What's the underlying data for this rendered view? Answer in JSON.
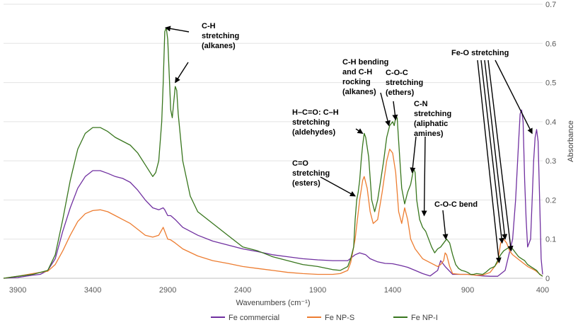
{
  "chart_data": {
    "type": "line",
    "xlabel": "Wavenumbers (cm⁻¹)",
    "ylabel": "Absorbance",
    "xlim": [
      3995,
      400
    ],
    "x_reversed": true,
    "ylim": [
      0,
      0.7
    ],
    "x_ticks": [
      3900,
      3400,
      2900,
      2400,
      1900,
      1400,
      900,
      400
    ],
    "x_tick_labels": [
      "3900",
      "3400",
      "2900",
      "2400",
      "1900",
      "1400",
      "900",
      "400"
    ],
    "y_ticks": [
      0,
      0.1,
      0.2,
      0.3,
      0.4,
      0.5,
      0.6,
      0.7
    ],
    "y_tick_labels": [
      "0",
      "0.1",
      "0.2",
      "0.3",
      "0.4",
      "0.5",
      "0.6",
      "0.7"
    ],
    "y_axis_side": "right",
    "grid": "horizontal",
    "legend_position": "bottom",
    "series": [
      {
        "name": "Fe commercial",
        "color": "#7030A0",
        "points": [
          [
            3995,
            0
          ],
          [
            3900,
            0.002
          ],
          [
            3800,
            0.008
          ],
          [
            3750,
            0.01
          ],
          [
            3700,
            0.02
          ],
          [
            3650,
            0.05
          ],
          [
            3600,
            0.12
          ],
          [
            3550,
            0.18
          ],
          [
            3500,
            0.23
          ],
          [
            3450,
            0.26
          ],
          [
            3400,
            0.275
          ],
          [
            3350,
            0.275
          ],
          [
            3300,
            0.268
          ],
          [
            3250,
            0.26
          ],
          [
            3200,
            0.255
          ],
          [
            3150,
            0.245
          ],
          [
            3100,
            0.225
          ],
          [
            3050,
            0.2
          ],
          [
            3000,
            0.18
          ],
          [
            2960,
            0.175
          ],
          [
            2930,
            0.18
          ],
          [
            2920,
            0.175
          ],
          [
            2900,
            0.16
          ],
          [
            2880,
            0.16
          ],
          [
            2850,
            0.15
          ],
          [
            2800,
            0.13
          ],
          [
            2700,
            0.11
          ],
          [
            2600,
            0.095
          ],
          [
            2500,
            0.085
          ],
          [
            2400,
            0.075
          ],
          [
            2300,
            0.068
          ],
          [
            2200,
            0.06
          ],
          [
            2100,
            0.055
          ],
          [
            2000,
            0.05
          ],
          [
            1900,
            0.047
          ],
          [
            1800,
            0.045
          ],
          [
            1700,
            0.045
          ],
          [
            1650,
            0.06
          ],
          [
            1620,
            0.065
          ],
          [
            1580,
            0.06
          ],
          [
            1550,
            0.05
          ],
          [
            1500,
            0.042
          ],
          [
            1450,
            0.038
          ],
          [
            1400,
            0.037
          ],
          [
            1350,
            0.033
          ],
          [
            1300,
            0.028
          ],
          [
            1250,
            0.02
          ],
          [
            1200,
            0.012
          ],
          [
            1150,
            0.006
          ],
          [
            1100,
            0.02
          ],
          [
            1080,
            0.045
          ],
          [
            1050,
            0.03
          ],
          [
            1000,
            0.01
          ],
          [
            950,
            0.01
          ],
          [
            900,
            0.01
          ],
          [
            850,
            0.008
          ],
          [
            800,
            0.006
          ],
          [
            750,
            0.005
          ],
          [
            700,
            0.005
          ],
          [
            650,
            0.02
          ],
          [
            600,
            0.1
          ],
          [
            580,
            0.2
          ],
          [
            560,
            0.35
          ],
          [
            550,
            0.42
          ],
          [
            540,
            0.43
          ],
          [
            530,
            0.4
          ],
          [
            520,
            0.25
          ],
          [
            510,
            0.15
          ],
          [
            500,
            0.08
          ],
          [
            480,
            0.1
          ],
          [
            470,
            0.2
          ],
          [
            460,
            0.3
          ],
          [
            450,
            0.36
          ],
          [
            440,
            0.38
          ],
          [
            430,
            0.35
          ],
          [
            420,
            0.2
          ],
          [
            410,
            0.05
          ],
          [
            400,
            0.01
          ]
        ]
      },
      {
        "name": "Fe NP-S",
        "color": "#ED7D31",
        "points": [
          [
            3995,
            0
          ],
          [
            3900,
            0.005
          ],
          [
            3800,
            0.012
          ],
          [
            3750,
            0.015
          ],
          [
            3700,
            0.018
          ],
          [
            3650,
            0.035
          ],
          [
            3600,
            0.07
          ],
          [
            3550,
            0.11
          ],
          [
            3500,
            0.145
          ],
          [
            3450,
            0.165
          ],
          [
            3400,
            0.173
          ],
          [
            3350,
            0.175
          ],
          [
            3300,
            0.17
          ],
          [
            3250,
            0.16
          ],
          [
            3200,
            0.15
          ],
          [
            3150,
            0.14
          ],
          [
            3100,
            0.125
          ],
          [
            3050,
            0.11
          ],
          [
            3000,
            0.105
          ],
          [
            2960,
            0.11
          ],
          [
            2930,
            0.13
          ],
          [
            2920,
            0.12
          ],
          [
            2900,
            0.1
          ],
          [
            2880,
            0.098
          ],
          [
            2850,
            0.09
          ],
          [
            2800,
            0.075
          ],
          [
            2700,
            0.057
          ],
          [
            2600,
            0.045
          ],
          [
            2500,
            0.038
          ],
          [
            2400,
            0.03
          ],
          [
            2300,
            0.025
          ],
          [
            2200,
            0.02
          ],
          [
            2100,
            0.015
          ],
          [
            2000,
            0.012
          ],
          [
            1900,
            0.01
          ],
          [
            1800,
            0.01
          ],
          [
            1750,
            0.012
          ],
          [
            1700,
            0.02
          ],
          [
            1680,
            0.04
          ],
          [
            1650,
            0.1
          ],
          [
            1620,
            0.2
          ],
          [
            1600,
            0.25
          ],
          [
            1590,
            0.26
          ],
          [
            1570,
            0.23
          ],
          [
            1550,
            0.17
          ],
          [
            1530,
            0.14
          ],
          [
            1500,
            0.15
          ],
          [
            1470,
            0.22
          ],
          [
            1440,
            0.3
          ],
          [
            1420,
            0.33
          ],
          [
            1400,
            0.32
          ],
          [
            1380,
            0.27
          ],
          [
            1360,
            0.17
          ],
          [
            1340,
            0.14
          ],
          [
            1320,
            0.18
          ],
          [
            1300,
            0.15
          ],
          [
            1280,
            0.1
          ],
          [
            1250,
            0.075
          ],
          [
            1200,
            0.05
          ],
          [
            1150,
            0.04
          ],
          [
            1100,
            0.03
          ],
          [
            1080,
            0.035
          ],
          [
            1060,
            0.045
          ],
          [
            1050,
            0.065
          ],
          [
            1040,
            0.06
          ],
          [
            1020,
            0.03
          ],
          [
            1000,
            0.012
          ],
          [
            950,
            0.01
          ],
          [
            900,
            0.01
          ],
          [
            850,
            0.008
          ],
          [
            800,
            0.008
          ],
          [
            750,
            0.015
          ],
          [
            700,
            0.04
          ],
          [
            680,
            0.09
          ],
          [
            660,
            0.1
          ],
          [
            640,
            0.09
          ],
          [
            620,
            0.07
          ],
          [
            600,
            0.06
          ],
          [
            550,
            0.045
          ],
          [
            500,
            0.03
          ],
          [
            450,
            0.02
          ],
          [
            400,
            0.005
          ]
        ]
      },
      {
        "name": "Fe NP-I",
        "color": "#38761D",
        "points": [
          [
            3995,
            0
          ],
          [
            3900,
            0.005
          ],
          [
            3800,
            0.01
          ],
          [
            3750,
            0.015
          ],
          [
            3700,
            0.02
          ],
          [
            3650,
            0.06
          ],
          [
            3600,
            0.15
          ],
          [
            3550,
            0.25
          ],
          [
            3500,
            0.33
          ],
          [
            3450,
            0.37
          ],
          [
            3400,
            0.385
          ],
          [
            3350,
            0.385
          ],
          [
            3300,
            0.375
          ],
          [
            3250,
            0.36
          ],
          [
            3200,
            0.35
          ],
          [
            3150,
            0.34
          ],
          [
            3100,
            0.32
          ],
          [
            3050,
            0.29
          ],
          [
            3000,
            0.26
          ],
          [
            2980,
            0.27
          ],
          [
            2960,
            0.3
          ],
          [
            2950,
            0.35
          ],
          [
            2940,
            0.4
          ],
          [
            2930,
            0.5
          ],
          [
            2920,
            0.63
          ],
          [
            2910,
            0.64
          ],
          [
            2900,
            0.61
          ],
          [
            2890,
            0.52
          ],
          [
            2880,
            0.43
          ],
          [
            2870,
            0.41
          ],
          [
            2860,
            0.45
          ],
          [
            2850,
            0.49
          ],
          [
            2840,
            0.48
          ],
          [
            2830,
            0.42
          ],
          [
            2800,
            0.3
          ],
          [
            2750,
            0.21
          ],
          [
            2700,
            0.17
          ],
          [
            2600,
            0.14
          ],
          [
            2500,
            0.11
          ],
          [
            2400,
            0.08
          ],
          [
            2300,
            0.07
          ],
          [
            2200,
            0.055
          ],
          [
            2100,
            0.045
          ],
          [
            2000,
            0.035
          ],
          [
            1900,
            0.03
          ],
          [
            1800,
            0.022
          ],
          [
            1750,
            0.02
          ],
          [
            1700,
            0.03
          ],
          [
            1680,
            0.05
          ],
          [
            1660,
            0.08
          ],
          [
            1650,
            0.15
          ],
          [
            1640,
            0.2
          ],
          [
            1630,
            0.22
          ],
          [
            1620,
            0.25
          ],
          [
            1610,
            0.3
          ],
          [
            1600,
            0.34
          ],
          [
            1590,
            0.37
          ],
          [
            1580,
            0.36
          ],
          [
            1560,
            0.31
          ],
          [
            1540,
            0.2
          ],
          [
            1520,
            0.17
          ],
          [
            1500,
            0.2
          ],
          [
            1480,
            0.25
          ],
          [
            1460,
            0.3
          ],
          [
            1440,
            0.36
          ],
          [
            1420,
            0.39
          ],
          [
            1400,
            0.4
          ],
          [
            1390,
            0.39
          ],
          [
            1380,
            0.41
          ],
          [
            1370,
            0.41
          ],
          [
            1360,
            0.35
          ],
          [
            1340,
            0.23
          ],
          [
            1320,
            0.19
          ],
          [
            1300,
            0.22
          ],
          [
            1280,
            0.24
          ],
          [
            1260,
            0.28
          ],
          [
            1250,
            0.27
          ],
          [
            1240,
            0.2
          ],
          [
            1220,
            0.15
          ],
          [
            1200,
            0.13
          ],
          [
            1180,
            0.12
          ],
          [
            1160,
            0.1
          ],
          [
            1140,
            0.08
          ],
          [
            1120,
            0.065
          ],
          [
            1100,
            0.075
          ],
          [
            1080,
            0.08
          ],
          [
            1060,
            0.09
          ],
          [
            1040,
            0.1
          ],
          [
            1020,
            0.09
          ],
          [
            1000,
            0.06
          ],
          [
            980,
            0.035
          ],
          [
            960,
            0.025
          ],
          [
            940,
            0.02
          ],
          [
            920,
            0.018
          ],
          [
            900,
            0.015
          ],
          [
            880,
            0.01
          ],
          [
            860,
            0.01
          ],
          [
            840,
            0.012
          ],
          [
            800,
            0.01
          ],
          [
            780,
            0.015
          ],
          [
            750,
            0.025
          ],
          [
            720,
            0.03
          ],
          [
            700,
            0.045
          ],
          [
            680,
            0.06
          ],
          [
            660,
            0.07
          ],
          [
            640,
            0.075
          ],
          [
            620,
            0.08
          ],
          [
            600,
            0.075
          ],
          [
            580,
            0.065
          ],
          [
            560,
            0.055
          ],
          [
            540,
            0.05
          ],
          [
            520,
            0.045
          ],
          [
            500,
            0.035
          ],
          [
            480,
            0.03
          ],
          [
            460,
            0.025
          ],
          [
            440,
            0.02
          ],
          [
            420,
            0.01
          ],
          [
            400,
            0.005
          ]
        ]
      }
    ],
    "annotations": [
      {
        "lines": [
          "C-H",
          "stretching",
          "(alkanes)"
        ],
        "arrow_targets": [
          [
            2915,
            0.64
          ],
          [
            2850,
            0.5
          ]
        ]
      },
      {
        "lines": [
          "H–C=O: C–H",
          "stretching",
          "(aldehydes)"
        ],
        "arrow_targets": [
          [
            1600,
            0.37
          ]
        ]
      },
      {
        "lines": [
          "C-H bending",
          "and C-H",
          "rocking",
          "(alkanes)"
        ],
        "arrow_targets": [
          [
            1425,
            0.39
          ]
        ]
      },
      {
        "lines": [
          "C-O-C",
          "stretching",
          "(ethers)"
        ],
        "arrow_targets": [
          [
            1380,
            0.405
          ]
        ]
      },
      {
        "lines": [
          "C=O",
          "stretching",
          "(esters)"
        ],
        "arrow_targets": [
          [
            1650,
            0.21
          ]
        ]
      },
      {
        "lines": [
          "C-N",
          "stretching",
          "(aliphatic",
          "amines)"
        ],
        "arrow_targets": [
          [
            1270,
            0.27
          ],
          [
            1190,
            0.16
          ]
        ]
      },
      {
        "lines": [
          "C-O-C bend"
        ],
        "arrow_targets": [
          [
            1045,
            0.1
          ]
        ]
      },
      {
        "lines": [
          "Fe-O stretching"
        ],
        "arrow_targets": [
          [
            690,
            0.04
          ],
          [
            670,
            0.09
          ],
          [
            650,
            0.1
          ],
          [
            610,
            0.07
          ],
          [
            470,
            0.37
          ]
        ]
      }
    ]
  }
}
